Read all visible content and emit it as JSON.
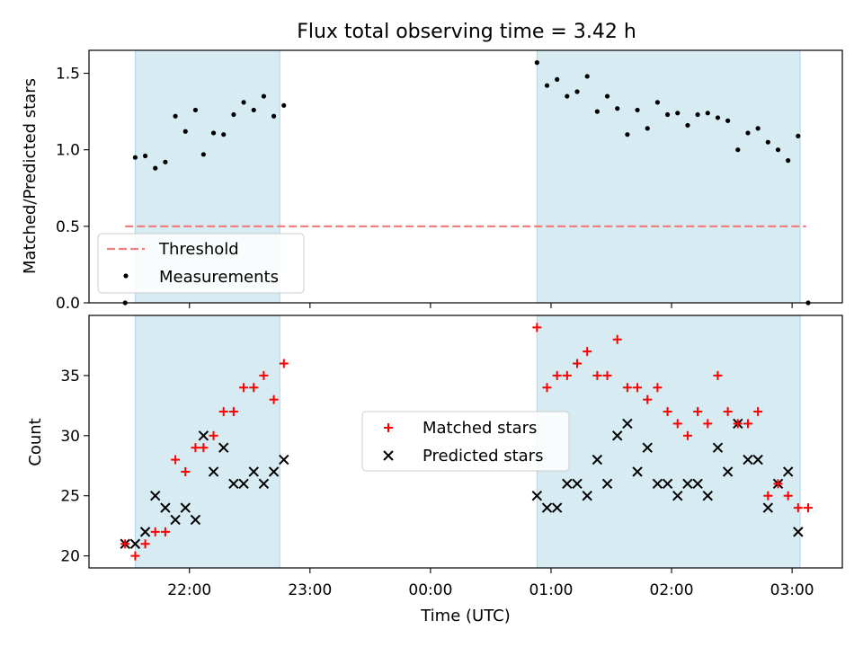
{
  "title": "Flux total observing time = 3.42 h",
  "colors": {
    "shade": "#add8e6",
    "threshold": "#f08080",
    "matched": "#ff0000",
    "predicted": "#000000",
    "measurement": "#000000"
  },
  "chart_data": [
    {
      "type": "scatter",
      "ylabel": "Matched/Predicted stars",
      "ylim": [
        0,
        1.65
      ],
      "xlim": [
        "21:10",
        "03:25"
      ],
      "yticks": [
        0.0,
        0.5,
        1.0,
        1.5
      ],
      "ytick_labels": [
        "0.0",
        "0.5",
        "1.0",
        "1.5"
      ],
      "grid": false,
      "legend": {
        "placement": "lower-left",
        "entries": [
          "Threshold",
          "Measurements"
        ]
      },
      "threshold": {
        "name": "Threshold",
        "value": 0.5,
        "x_range": [
          "21:28",
          "03:07"
        ]
      },
      "shaded_regions": [
        [
          "21:33",
          "22:45"
        ],
        [
          "00:53",
          "03:04"
        ]
      ],
      "series": [
        {
          "name": "Measurements",
          "x": [
            "21:28",
            "21:33",
            "21:38",
            "21:43",
            "21:48",
            "21:53",
            "21:58",
            "22:03",
            "22:07",
            "22:12",
            "22:17",
            "22:22",
            "22:27",
            "22:32",
            "22:37",
            "22:42",
            "22:47",
            "00:53",
            "00:58",
            "01:03",
            "01:08",
            "01:13",
            "01:18",
            "01:23",
            "01:28",
            "01:33",
            "01:38",
            "01:43",
            "01:48",
            "01:53",
            "01:58",
            "02:03",
            "02:08",
            "02:13",
            "02:18",
            "02:23",
            "02:28",
            "02:33",
            "02:38",
            "02:43",
            "02:48",
            "02:53",
            "02:58",
            "03:03",
            "03:08"
          ],
          "y": [
            0.0,
            0.95,
            0.96,
            0.88,
            0.92,
            1.22,
            1.12,
            1.26,
            0.97,
            1.11,
            1.1,
            1.23,
            1.31,
            1.26,
            1.35,
            1.22,
            1.29,
            1.57,
            1.42,
            1.46,
            1.35,
            1.38,
            1.48,
            1.25,
            1.35,
            1.27,
            1.1,
            1.26,
            1.14,
            1.31,
            1.23,
            1.24,
            1.16,
            1.23,
            1.24,
            1.21,
            1.19,
            1.0,
            1.11,
            1.14,
            1.05,
            1.0,
            0.93,
            1.09,
            0.0
          ]
        }
      ]
    },
    {
      "type": "scatter",
      "xlabel": "Time (UTC)",
      "ylabel": "Count",
      "ylim": [
        19,
        40
      ],
      "yticks": [
        20,
        25,
        30,
        35
      ],
      "ytick_labels": [
        "20",
        "25",
        "30",
        "35"
      ],
      "xticks": [
        "22:00",
        "23:00",
        "00:00",
        "01:00",
        "02:00",
        "03:00"
      ],
      "xtick_labels": [
        "22:00",
        "23:00",
        "00:00",
        "01:00",
        "02:00",
        "03:00"
      ],
      "grid": false,
      "legend": {
        "placement": "center",
        "entries": [
          "Matched stars",
          "Predicted stars"
        ]
      },
      "shaded_regions": [
        [
          "21:33",
          "22:45"
        ],
        [
          "00:53",
          "03:04"
        ]
      ],
      "series": [
        {
          "name": "Matched stars",
          "marker": "plus",
          "x": [
            "21:28",
            "21:33",
            "21:38",
            "21:43",
            "21:48",
            "21:53",
            "21:58",
            "22:03",
            "22:07",
            "22:12",
            "22:17",
            "22:22",
            "22:27",
            "22:32",
            "22:37",
            "22:42",
            "22:47",
            "00:53",
            "00:58",
            "01:03",
            "01:08",
            "01:13",
            "01:18",
            "01:23",
            "01:28",
            "01:33",
            "01:38",
            "01:43",
            "01:48",
            "01:53",
            "01:58",
            "02:03",
            "02:08",
            "02:13",
            "02:18",
            "02:23",
            "02:28",
            "02:33",
            "02:38",
            "02:43",
            "02:48",
            "02:53",
            "02:58",
            "03:03",
            "03:08"
          ],
          "y": [
            21,
            20,
            21,
            22,
            22,
            28,
            27,
            29,
            29,
            30,
            32,
            32,
            34,
            34,
            35,
            33,
            36,
            39,
            34,
            35,
            35,
            36,
            37,
            35,
            35,
            38,
            34,
            34,
            33,
            34,
            32,
            31,
            30,
            32,
            31,
            35,
            32,
            31,
            31,
            32,
            25,
            26,
            25,
            24,
            24
          ]
        },
        {
          "name": "Predicted stars",
          "marker": "x",
          "x": [
            "21:28",
            "21:33",
            "21:38",
            "21:43",
            "21:48",
            "21:53",
            "21:58",
            "22:03",
            "22:07",
            "22:12",
            "22:17",
            "22:22",
            "22:27",
            "22:32",
            "22:37",
            "22:42",
            "22:47",
            "00:53",
            "00:58",
            "01:03",
            "01:08",
            "01:13",
            "01:18",
            "01:23",
            "01:28",
            "01:33",
            "01:38",
            "01:43",
            "01:48",
            "01:53",
            "01:58",
            "02:03",
            "02:08",
            "02:13",
            "02:18",
            "02:23",
            "02:28",
            "02:33",
            "02:38",
            "02:43",
            "02:48",
            "02:53",
            "02:58",
            "03:03"
          ],
          "y": [
            21,
            21,
            22,
            25,
            24,
            23,
            24,
            23,
            30,
            27,
            29,
            26,
            26,
            27,
            26,
            27,
            28,
            25,
            24,
            24,
            26,
            26,
            25,
            28,
            26,
            30,
            31,
            27,
            29,
            26,
            26,
            25,
            26,
            26,
            25,
            29,
            27,
            31,
            28,
            28,
            24,
            26,
            27,
            22
          ]
        }
      ]
    }
  ]
}
